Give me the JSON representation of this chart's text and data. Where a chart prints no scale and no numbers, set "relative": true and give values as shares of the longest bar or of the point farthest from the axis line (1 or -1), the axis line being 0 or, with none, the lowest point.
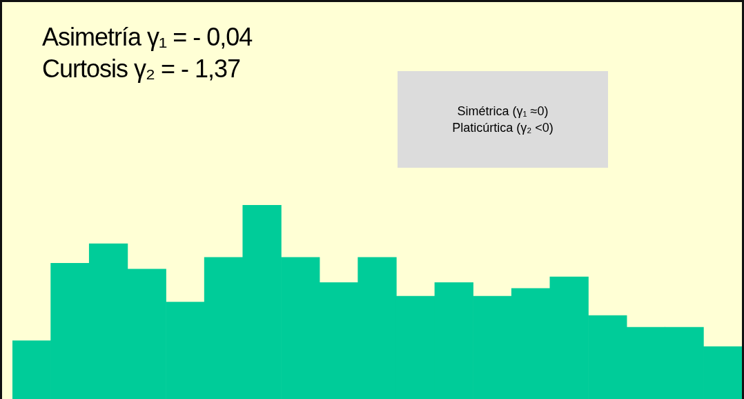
{
  "chart_data": {
    "type": "bar",
    "relative": true,
    "categories": [
      null,
      null,
      null,
      null,
      null,
      null,
      null,
      null,
      null,
      null,
      null,
      null,
      null,
      null,
      null,
      null,
      null,
      null,
      null
    ],
    "values": [
      0.3,
      0.7,
      0.8,
      0.67,
      0.5,
      0.73,
      1,
      0.73,
      0.6,
      0.73,
      0.53,
      0.6,
      0.53,
      0.57,
      0.63,
      0.43,
      0.37,
      0.37,
      0.27
    ],
    "color": "#00cc99",
    "annotations": [
      "Asimetría γ₁ = - 0,04",
      "Curtosis γ₂ =  - 1,37",
      "Simétrica (γ₁ ≈0)",
      "Platicúrtica (γ₂ <0)"
    ]
  }
}
